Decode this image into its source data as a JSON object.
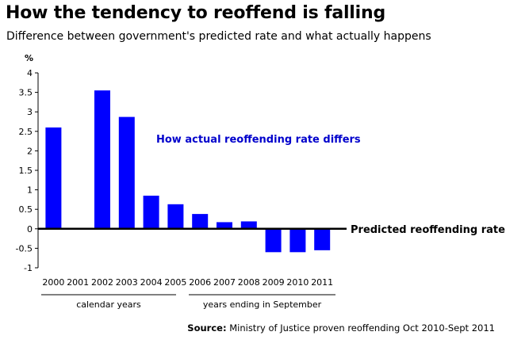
{
  "title": "How the tendency to reoffend is falling",
  "subtitle": "Difference between government's predicted rate and what actually happens",
  "source": {
    "label": "Source:",
    "text": "Ministry of Justice proven reoffending Oct 2010-Sept 2011"
  },
  "colors": {
    "bar": "#0000ff",
    "annotation": "#0000cc",
    "axis": "#000000"
  },
  "chart_data": {
    "type": "bar",
    "ylabel": "%",
    "ylim": [
      -1,
      4
    ],
    "yticks": [
      -1,
      -0.5,
      0,
      0.5,
      1,
      1.5,
      2,
      2.5,
      3,
      3.5,
      4
    ],
    "ytick_labels": [
      "-1",
      "-0.5",
      "0",
      "0.5",
      "1",
      "1.5",
      "2",
      "2.5",
      "3",
      "3.5",
      "4"
    ],
    "categories": [
      "2000",
      "2001",
      "2002",
      "2003",
      "2004",
      "2005",
      "2006",
      "2007",
      "2008",
      "2009",
      "2010",
      "2011"
    ],
    "values": [
      2.6,
      null,
      3.55,
      2.87,
      0.85,
      0.63,
      0.38,
      0.17,
      0.19,
      -0.6,
      -0.6,
      -0.55
    ],
    "annotation": "How actual reoffending rate differs",
    "baseline_label": "Predicted reoffending rate",
    "groups": [
      {
        "label": "calendar years"
      },
      {
        "label": "years ending in September"
      }
    ]
  }
}
